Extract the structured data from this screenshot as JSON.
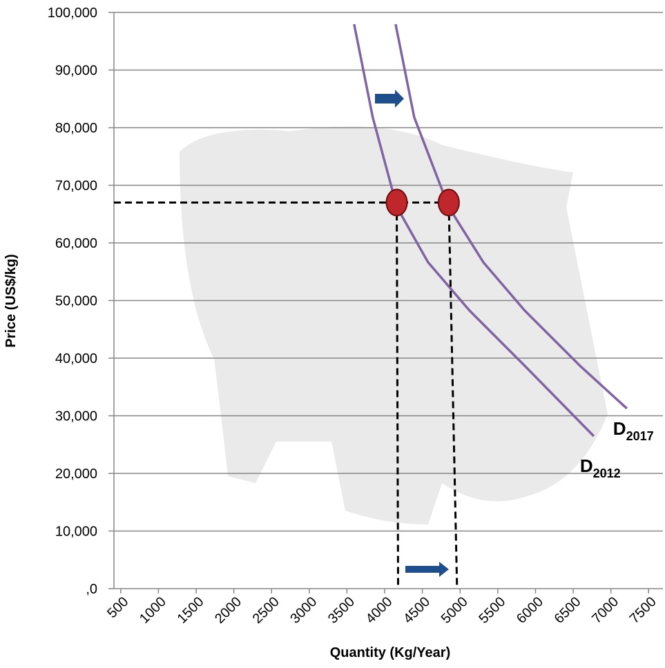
{
  "chart_data": {
    "type": "line",
    "x_label": "Quantity (Kg/Year)",
    "y_label": "Price (US$/kg)",
    "xlim": [
      410,
      7690
    ],
    "ylim": [
      0,
      100000
    ],
    "xticks": [
      500,
      1000,
      1500,
      2000,
      2500,
      3000,
      3500,
      4000,
      4500,
      5000,
      5500,
      6000,
      6500,
      7000,
      7500
    ],
    "yticks": [
      {
        "value": 0,
        "label": ",0"
      },
      {
        "value": 10000,
        "label": "10,000"
      },
      {
        "value": 20000,
        "label": "20,000"
      },
      {
        "value": 30000,
        "label": "30,000"
      },
      {
        "value": 40000,
        "label": "40,000"
      },
      {
        "value": 50000,
        "label": "50,000"
      },
      {
        "value": 60000,
        "label": "60,000"
      },
      {
        "value": 70000,
        "label": "70,000"
      },
      {
        "value": 80000,
        "label": "80,000"
      },
      {
        "value": 90000,
        "label": "90,000"
      },
      {
        "value": 100000,
        "label": "100,000"
      }
    ],
    "grid": true,
    "series": [
      {
        "name": "D2012",
        "color": "#8064a2",
        "x": [
          3595,
          3842,
          4163,
          4575,
          5125,
          5857,
          6773
        ],
        "values": [
          97960,
          81800,
          66200,
          56650,
          48260,
          38680,
          26470
        ]
      },
      {
        "name": "D2017",
        "color": "#8064a2",
        "x": [
          4145,
          4392,
          4850,
          5308,
          5857,
          6590,
          7212
        ],
        "values": [
          97960,
          81800,
          66200,
          56650,
          48260,
          38680,
          31260
        ]
      }
    ],
    "points": {
      "color": "#c0272d",
      "x": [
        4160,
        4850
      ],
      "values": [
        67000,
        67000
      ]
    }
  }
}
